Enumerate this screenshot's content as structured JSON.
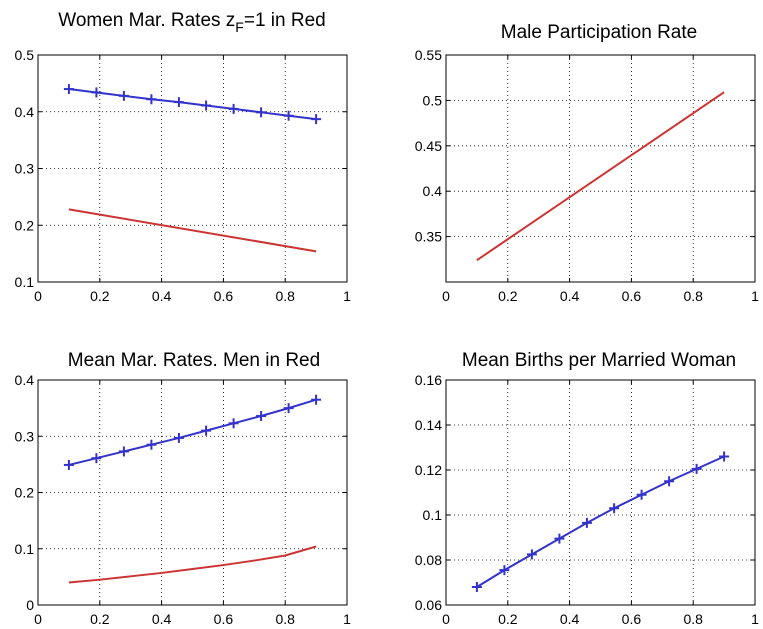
{
  "chart_data": [
    {
      "type": "line",
      "title": "Women Mar. Rates  z",
      "title_sub": "F",
      "title_tail": "=1 in Red",
      "xlabel": "",
      "ylabel": "",
      "xlim": [
        0,
        1
      ],
      "ylim": [
        0.1,
        0.5
      ],
      "xticks": [
        "0",
        "0.2",
        "0.4",
        "0.6",
        "0.8",
        "1"
      ],
      "yticks": [
        "0.1",
        "0.2",
        "0.3",
        "0.4",
        "0.5"
      ],
      "grid": true,
      "series": [
        {
          "color": "#3333cc",
          "marker": "+",
          "x": [
            0.1,
            0.189,
            0.278,
            0.367,
            0.456,
            0.544,
            0.633,
            0.722,
            0.811,
            0.9
          ],
          "y": [
            0.44,
            0.434,
            0.428,
            0.422,
            0.417,
            0.411,
            0.405,
            0.399,
            0.393,
            0.387
          ]
        },
        {
          "color": "#cc3333",
          "marker": "",
          "x": [
            0.1,
            0.9
          ],
          "y": [
            0.228,
            0.154
          ]
        }
      ]
    },
    {
      "type": "line",
      "title": "Male Participation Rate",
      "xlabel": "",
      "ylabel": "",
      "xlim": [
        0,
        1
      ],
      "ylim": [
        0.3,
        0.55
      ],
      "xticks": [
        "0",
        "0.2",
        "0.4",
        "0.6",
        "0.8",
        "1"
      ],
      "yticks": [
        "0.35",
        "0.4",
        "0.45",
        "0.5",
        "0.55"
      ],
      "grid": true,
      "series": [
        {
          "color": "#cc3333",
          "marker": "",
          "x": [
            0.1,
            0.9
          ],
          "y": [
            0.324,
            0.509
          ]
        }
      ]
    },
    {
      "type": "line",
      "title": "Mean Mar. Rates. Men in Red",
      "xlabel": "",
      "ylabel": "",
      "xlim": [
        0,
        1
      ],
      "ylim": [
        0,
        0.4
      ],
      "xticks": [
        "0",
        "0.2",
        "0.4",
        "0.6",
        "0.8",
        "1"
      ],
      "yticks": [
        "0",
        "0.1",
        "0.2",
        "0.3",
        "0.4"
      ],
      "grid": true,
      "series": [
        {
          "color": "#3333cc",
          "marker": "+",
          "x": [
            0.1,
            0.189,
            0.278,
            0.367,
            0.456,
            0.544,
            0.633,
            0.722,
            0.811,
            0.9
          ],
          "y": [
            0.249,
            0.261,
            0.273,
            0.285,
            0.297,
            0.31,
            0.323,
            0.336,
            0.35,
            0.365
          ]
        },
        {
          "color": "#cc3333",
          "marker": "",
          "x": [
            0.1,
            0.2,
            0.3,
            0.4,
            0.5,
            0.6,
            0.7,
            0.8,
            0.9
          ],
          "y": [
            0.04,
            0.045,
            0.051,
            0.057,
            0.064,
            0.071,
            0.079,
            0.088,
            0.104
          ]
        }
      ]
    },
    {
      "type": "line",
      "title": "Mean Births per Married Woman",
      "xlabel": "",
      "ylabel": "",
      "xlim": [
        0,
        1
      ],
      "ylim": [
        0.06,
        0.16
      ],
      "xticks": [
        "0",
        "0.2",
        "0.4",
        "0.6",
        "0.8",
        "1"
      ],
      "yticks": [
        "0.06",
        "0.08",
        "0.1",
        "0.12",
        "0.14",
        "0.16"
      ],
      "grid": true,
      "series": [
        {
          "color": "#3333cc",
          "marker": "+",
          "x": [
            0.1,
            0.189,
            0.278,
            0.367,
            0.456,
            0.544,
            0.633,
            0.722,
            0.811,
            0.9
          ],
          "y": [
            0.068,
            0.0755,
            0.0825,
            0.0895,
            0.0965,
            0.103,
            0.109,
            0.115,
            0.1205,
            0.126
          ]
        }
      ]
    }
  ]
}
